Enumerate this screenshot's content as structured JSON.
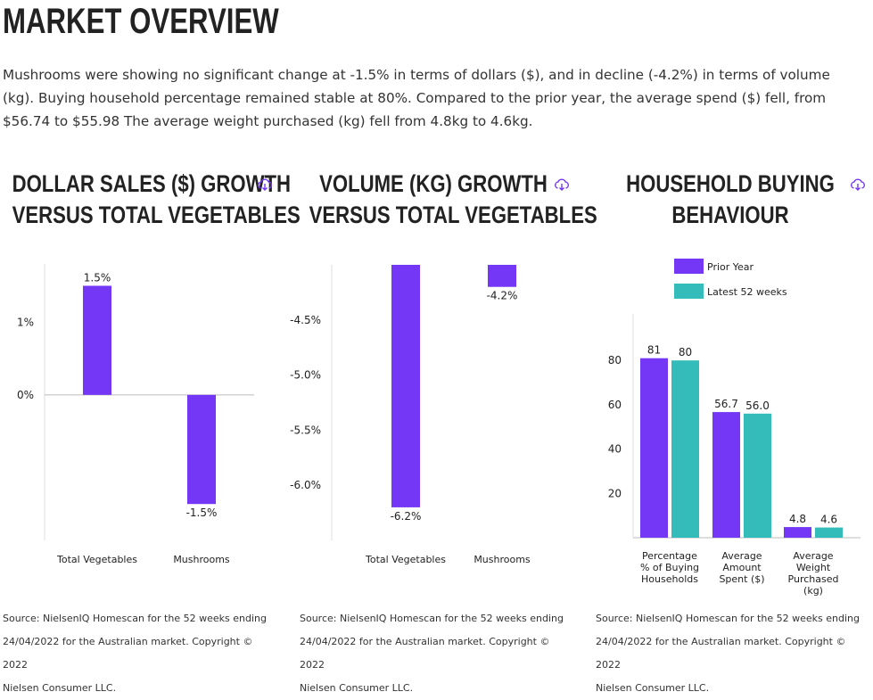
{
  "page": {
    "title": "MARKET OVERVIEW",
    "intro": "Mushrooms were showing no significant change at -1.5% in terms of dollars ($), and in decline (-4.2%) in terms of volume (kg). Buying household percentage remained stable at 80%. Compared to the prior year, the average spend ($) fell, from $56.74 to $55.98 The average weight purchased (kg) fell from 4.8kg to 4.6kg."
  },
  "colors": {
    "purple": "#7337f5",
    "teal": "#33bcb9"
  },
  "icons": {
    "download": "cloud-download-icon"
  },
  "charts": [
    {
      "title_line1": "DOLLAR SALES ($) GROWTH",
      "title_line2": "VERSUS TOTAL VEGETABLES",
      "source_line1": "Source: NielsenIQ Homescan for the 52 weeks ending",
      "source_line2": "24/04/2022 for the Australian market. Copyright © 2022",
      "source_line3": "Nielsen Consumer LLC."
    },
    {
      "title_line1": "VOLUME (KG) GROWTH",
      "title_line2": "VERSUS TOTAL VEGETABLES",
      "source_line1": "Source: NielsenIQ Homescan for the 52 weeks ending",
      "source_line2": "24/04/2022 for the Australian market. Copyright © 2022",
      "source_line3": "Nielsen Consumer LLC."
    },
    {
      "title_line1": "HOUSEHOLD BUYING",
      "title_line2": "BEHAVIOUR",
      "source_line1": "Source: NielsenIQ Homescan for the 52 weeks ending",
      "source_line2": "24/04/2022 for the Australian market. Copyright © 2022",
      "source_line3": "Nielsen Consumer LLC."
    }
  ],
  "chart_data": [
    {
      "type": "bar",
      "title": "DOLLAR SALES ($) GROWTH VERSUS TOTAL VEGETABLES",
      "categories": [
        "Total Vegetables",
        "Mushrooms"
      ],
      "values": [
        1.5,
        -1.5
      ],
      "value_labels": [
        "1.5%",
        "-1.5%"
      ],
      "yticks": [
        0,
        1
      ],
      "ytick_labels": [
        "0%",
        "1%"
      ],
      "ylim": [
        -2.0,
        1.8
      ],
      "color": "#7337f5"
    },
    {
      "type": "bar",
      "title": "VOLUME (KG) GROWTH VERSUS TOTAL VEGETABLES",
      "categories": [
        "Total Vegetables",
        "Mushrooms"
      ],
      "values": [
        -6.2,
        -4.2
      ],
      "value_labels": [
        "-6.2%",
        "-4.2%"
      ],
      "yticks": [
        -4.5,
        -5.0,
        -5.5,
        -6.0
      ],
      "ytick_labels": [
        "-4.5%",
        "-5.0%",
        "-5.5%",
        "-6.0%"
      ],
      "ylim": [
        -6.5,
        -4.0
      ],
      "color": "#7337f5"
    },
    {
      "type": "bar",
      "title": "HOUSEHOLD BUYING BEHAVIOUR",
      "categories": [
        [
          "Percentage",
          "% of Buying",
          "Households"
        ],
        [
          "Average",
          "Amount",
          "Spent ($)"
        ],
        [
          "Average",
          "Weight",
          "Purchased",
          "(kg)"
        ]
      ],
      "series": [
        {
          "name": "Prior Year",
          "values": [
            81,
            56.7,
            4.8
          ],
          "value_labels": [
            "81",
            "56.7",
            "4.8"
          ],
          "color": "#7337f5"
        },
        {
          "name": "Latest 52 weeks",
          "values": [
            80,
            56.0,
            4.6
          ],
          "value_labels": [
            "80",
            "56.0",
            "4.6"
          ],
          "color": "#33bcb9"
        }
      ],
      "yticks": [
        20,
        40,
        60,
        80
      ],
      "ytick_labels": [
        "20",
        "40",
        "60",
        "80"
      ],
      "ylim": [
        0,
        101
      ],
      "legend": "top"
    }
  ]
}
